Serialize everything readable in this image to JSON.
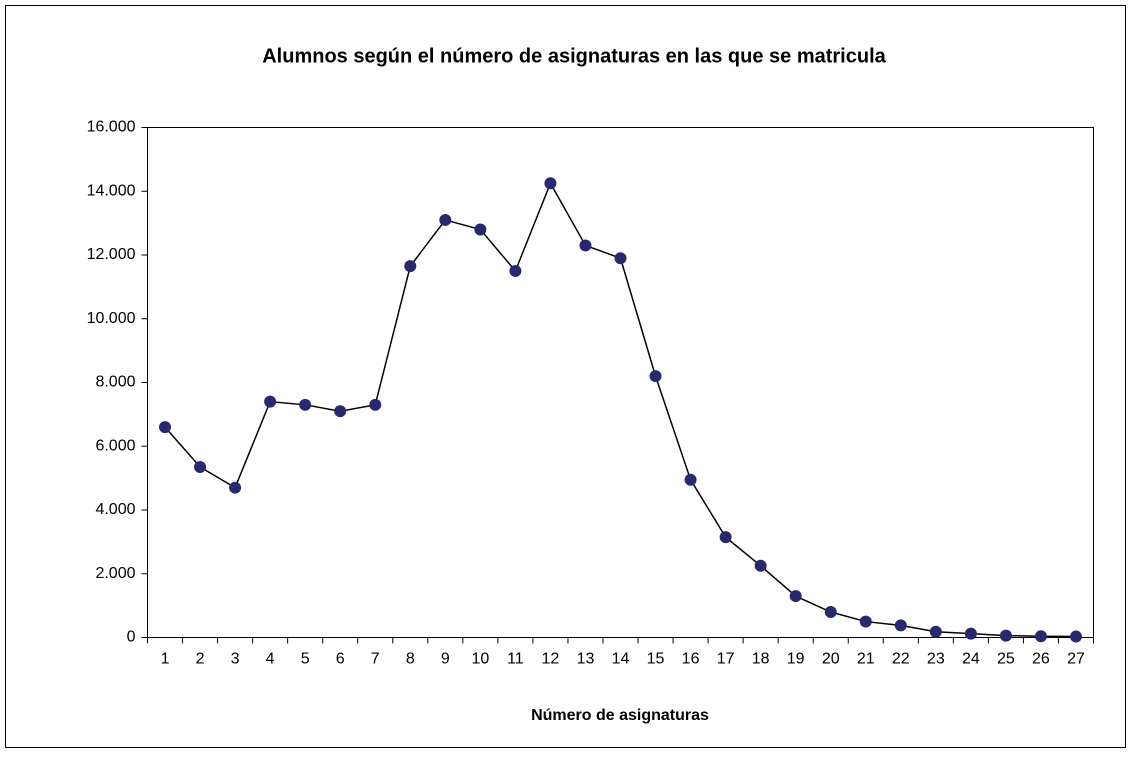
{
  "chart_data": {
    "type": "line",
    "title": "Alumnos según el número de asignaturas en las que se matricula",
    "x_label": "Número de asignaturas",
    "categories": [
      "1",
      "2",
      "3",
      "4",
      "5",
      "6",
      "7",
      "8",
      "9",
      "10",
      "11",
      "12",
      "13",
      "14",
      "15",
      "16",
      "17",
      "18",
      "19",
      "20",
      "21",
      "22",
      "23",
      "24",
      "25",
      "26",
      "27"
    ],
    "series": [
      {
        "color": "#28286e",
        "line_color": "#000000",
        "values": [
          6600,
          5350,
          4700,
          7400,
          7300,
          7100,
          7300,
          11650,
          13100,
          12800,
          11500,
          14250,
          12300,
          11900,
          8200,
          4950,
          3150,
          2250,
          1300,
          800,
          500,
          380,
          180,
          120,
          60,
          40,
          30
        ]
      }
    ],
    "ylim": [
      0,
      16000
    ],
    "yticks": [
      0,
      {
        "value": 2000,
        "label": "2.000"
      },
      {
        "value": 4000,
        "label": "4.000"
      },
      {
        "value": 6000,
        "label": "6.000"
      },
      {
        "value": 8000,
        "label": "8.000"
      },
      {
        "value": 10000,
        "label": "10.000"
      },
      {
        "value": 12000,
        "label": "12.000"
      },
      {
        "value": 14000,
        "label": "14.000"
      },
      {
        "value": 16000,
        "label": "16.000"
      }
    ],
    "grid": false
  }
}
